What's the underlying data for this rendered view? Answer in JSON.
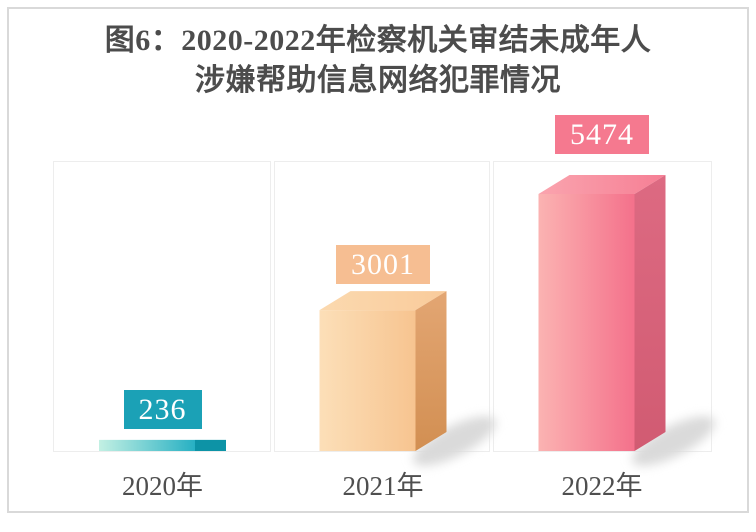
{
  "title": {
    "line1": "图6：2020-2022年检察机关审结未成年人",
    "line2": "涉嫌帮助信息网络犯罪情况"
  },
  "chart_data": {
    "type": "bar",
    "projection": "3d-cuboid",
    "title": "图6：2020-2022年检察机关审结未成年人涉嫌帮助信息网络犯罪情况",
    "categories": [
      "2020年",
      "2021年",
      "2022年"
    ],
    "values": [
      236,
      3001,
      5474
    ],
    "value_label_text_color": "#ffffff",
    "axis_label_color": "#4f4f4f",
    "grid": "column-panels",
    "legend": "none",
    "bars": [
      {
        "category": "2020年",
        "value": 236,
        "label": "236",
        "label_bg": "#1ba1b6",
        "front": [
          "#c3f0e3",
          "#27b0c3"
        ],
        "top": null,
        "side": [
          "#0d93a6",
          "#0d93a6"
        ],
        "flat": true
      },
      {
        "category": "2021年",
        "value": 3001,
        "label": "3001",
        "label_bg": "#f6be92",
        "front": [
          "#fcdfb8",
          "#f7c490"
        ],
        "top": [
          "#fbd9af",
          "#f9cb9b"
        ],
        "side": [
          "#e3a673",
          "#d28f52"
        ],
        "flat": false
      },
      {
        "category": "2022年",
        "value": 5474,
        "label": "5474",
        "label_bg": "#f5798f",
        "front": [
          "#fbb3b2",
          "#f4718b"
        ],
        "top": [
          "#faa4ae",
          "#f67f95"
        ],
        "side": [
          "#dd6a82",
          "#d15b72"
        ],
        "flat": false
      }
    ]
  }
}
